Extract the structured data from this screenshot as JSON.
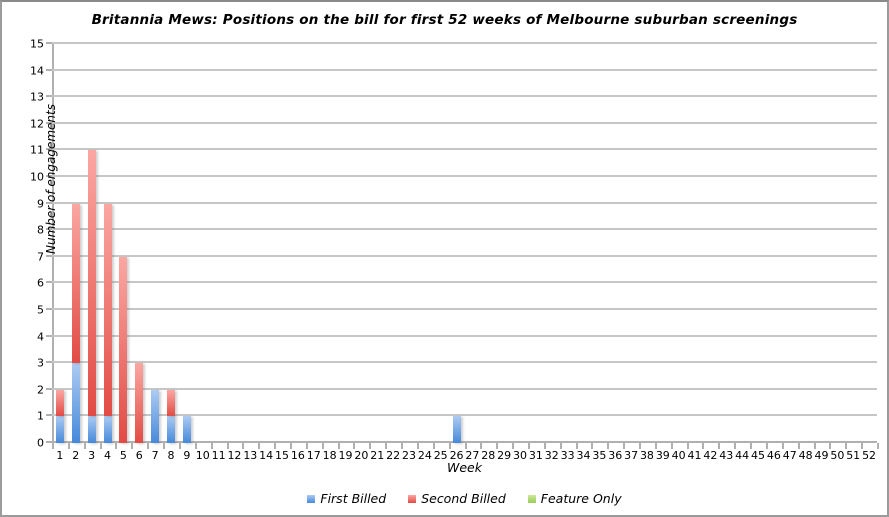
{
  "window": {
    "background": "#ffffff",
    "border_color": "#9b9b9b"
  },
  "chart_data": {
    "type": "bar",
    "stacked": true,
    "title": "Britannia Mews: Positions on the bill for first 52 weeks of Melbourne suburban screenings",
    "xlabel": "Week",
    "ylabel": "Number of engagements",
    "ylim": [
      0,
      15
    ],
    "ytick_step": 1,
    "grid": "horizontal",
    "gridline_color": "#c6c6c6",
    "axis_color": "#b0b0b0",
    "legend_position": "bottom",
    "categories": [
      "1",
      "2",
      "3",
      "4",
      "5",
      "6",
      "7",
      "8",
      "9",
      "10",
      "11",
      "12",
      "13",
      "14",
      "15",
      "16",
      "17",
      "18",
      "19",
      "20",
      "21",
      "22",
      "23",
      "24",
      "25",
      "26",
      "27",
      "28",
      "29",
      "30",
      "31",
      "32",
      "33",
      "34",
      "35",
      "36",
      "37",
      "38",
      "39",
      "40",
      "41",
      "42",
      "43",
      "44",
      "45",
      "46",
      "47",
      "48",
      "49",
      "50",
      "51",
      "52"
    ],
    "series": [
      {
        "name": "First Billed",
        "color_top": "#adcbf2",
        "color_bottom": "#4689da",
        "values": [
          1,
          3,
          1,
          1,
          0,
          0,
          2,
          1,
          1,
          0,
          0,
          0,
          0,
          0,
          0,
          0,
          0,
          0,
          0,
          0,
          0,
          0,
          0,
          0,
          0,
          1,
          0,
          0,
          0,
          0,
          0,
          0,
          0,
          0,
          0,
          0,
          0,
          0,
          0,
          0,
          0,
          0,
          0,
          0,
          0,
          0,
          0,
          0,
          0,
          0,
          0,
          0
        ]
      },
      {
        "name": "Second Billed",
        "color_top": "#fba7a2",
        "color_bottom": "#e24b45",
        "values": [
          1,
          6,
          10,
          8,
          7,
          3,
          0,
          1,
          0,
          0,
          0,
          0,
          0,
          0,
          0,
          0,
          0,
          0,
          0,
          0,
          0,
          0,
          0,
          0,
          0,
          0,
          0,
          0,
          0,
          0,
          0,
          0,
          0,
          0,
          0,
          0,
          0,
          0,
          0,
          0,
          0,
          0,
          0,
          0,
          0,
          0,
          0,
          0,
          0,
          0,
          0,
          0
        ]
      },
      {
        "name": "Feature Only",
        "color_top": "#cde79e",
        "color_bottom": "#9acd52",
        "values": [
          0,
          0,
          0,
          0,
          0,
          0,
          0,
          0,
          0,
          0,
          0,
          0,
          0,
          0,
          0,
          0,
          0,
          0,
          0,
          0,
          0,
          0,
          0,
          0,
          0,
          0,
          0,
          0,
          0,
          0,
          0,
          0,
          0,
          0,
          0,
          0,
          0,
          0,
          0,
          0,
          0,
          0,
          0,
          0,
          0,
          0,
          0,
          0,
          0,
          0,
          0,
          0
        ]
      }
    ]
  }
}
